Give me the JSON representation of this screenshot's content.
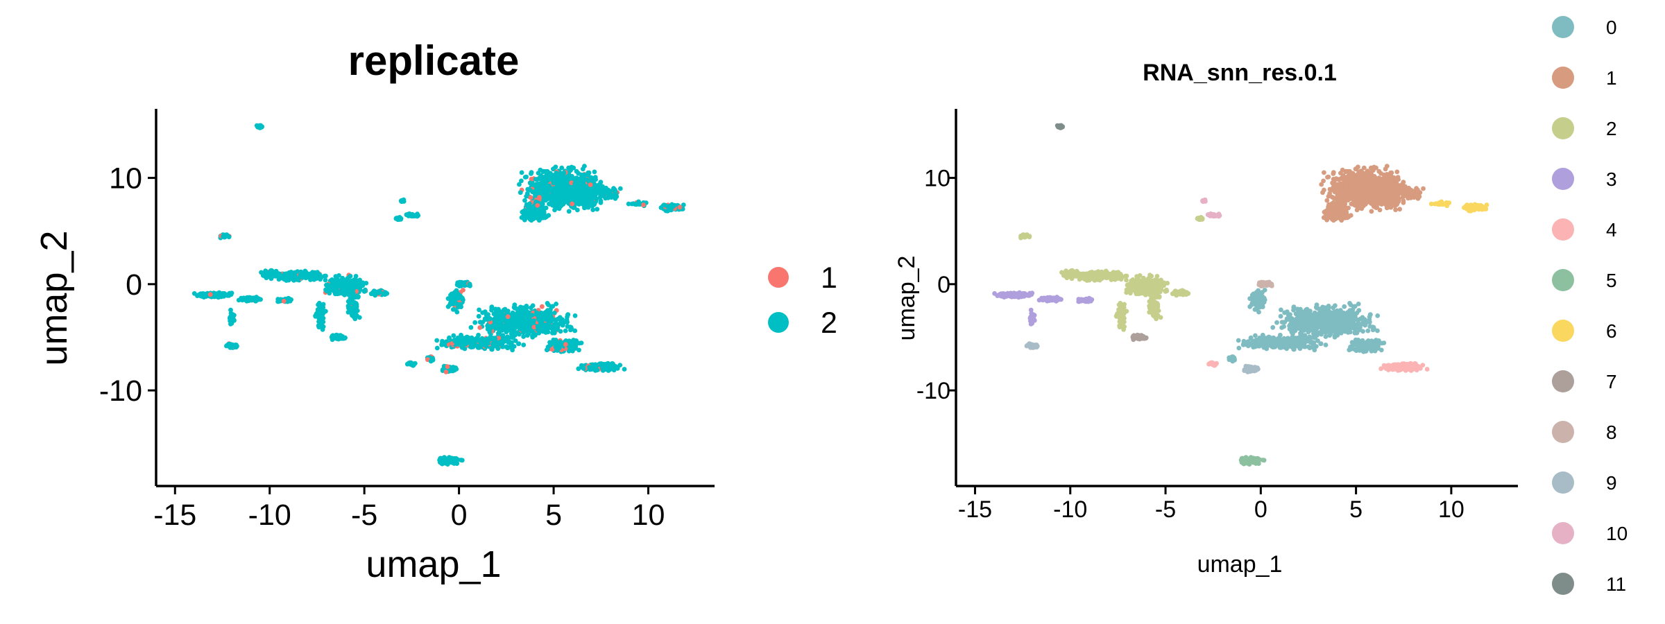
{
  "chart_data": [
    {
      "type": "scatter",
      "title": "replicate",
      "xlabel": "umap_1",
      "ylabel": "umap_2",
      "xlim": [
        -16,
        13.5
      ],
      "ylim": [
        -19,
        16.5
      ],
      "xticks": [
        -15,
        -10,
        -5,
        0,
        5,
        10
      ],
      "xtick_labels": [
        "-15",
        "-10",
        "-5",
        "0",
        "5",
        "10"
      ],
      "yticks": [
        -10,
        0,
        10
      ],
      "ytick_labels": [
        "-10",
        "0",
        "10"
      ],
      "grid": false,
      "legend_position": "right",
      "series": [
        {
          "name": "1",
          "color": "#F8766D"
        },
        {
          "name": "2",
          "color": "#00BFC4"
        }
      ],
      "points_note": "dense UMAP clusters; main islands approximated as regions",
      "regions": [
        {
          "x": [
            3,
            8.5
          ],
          "y": [
            5,
            12
          ],
          "series": "2"
        },
        {
          "x": [
            10,
            12
          ],
          "y": [
            6.5,
            8
          ],
          "series": "2"
        },
        {
          "x": [
            -14.5,
            -3.5
          ],
          "y": [
            -6,
            2
          ],
          "series": "2"
        },
        {
          "x": [
            -4,
            9
          ],
          "y": [
            -9,
            0
          ],
          "series": "2"
        },
        {
          "x": [
            -2,
            1
          ],
          "y": [
            -17,
            -16
          ],
          "series": "2"
        },
        {
          "x": [
            -11,
            -10
          ],
          "y": [
            14.5,
            15
          ],
          "series": "2"
        }
      ]
    },
    {
      "type": "scatter",
      "title": "RNA_snn_res.0.1",
      "xlabel": "umap_1",
      "ylabel": "umap_2",
      "xlim": [
        -16,
        13.5
      ],
      "ylim": [
        -19,
        16.5
      ],
      "xticks": [
        -15,
        -10,
        -5,
        0,
        5,
        10
      ],
      "xtick_labels": [
        "-15",
        "-10",
        "-5",
        "0",
        "5",
        "10"
      ],
      "yticks": [
        -10,
        0,
        10
      ],
      "ytick_labels": [
        "-10",
        "0",
        "10"
      ],
      "grid": false,
      "legend_position": "right",
      "series": [
        {
          "name": "0",
          "color": "#7FBCC1"
        },
        {
          "name": "1",
          "color": "#D79B7F"
        },
        {
          "name": "2",
          "color": "#C6CE8C"
        },
        {
          "name": "3",
          "color": "#B09FDD"
        },
        {
          "name": "4",
          "color": "#FBB3B3"
        },
        {
          "name": "5",
          "color": "#8CC09F"
        },
        {
          "name": "6",
          "color": "#FAD75F"
        },
        {
          "name": "7",
          "color": "#ADA09A"
        },
        {
          "name": "8",
          "color": "#CBB2AA"
        },
        {
          "name": "9",
          "color": "#A8BCC7"
        },
        {
          "name": "10",
          "color": "#E6B1C4"
        },
        {
          "name": "11",
          "color": "#7E8C8A"
        }
      ]
    }
  ]
}
